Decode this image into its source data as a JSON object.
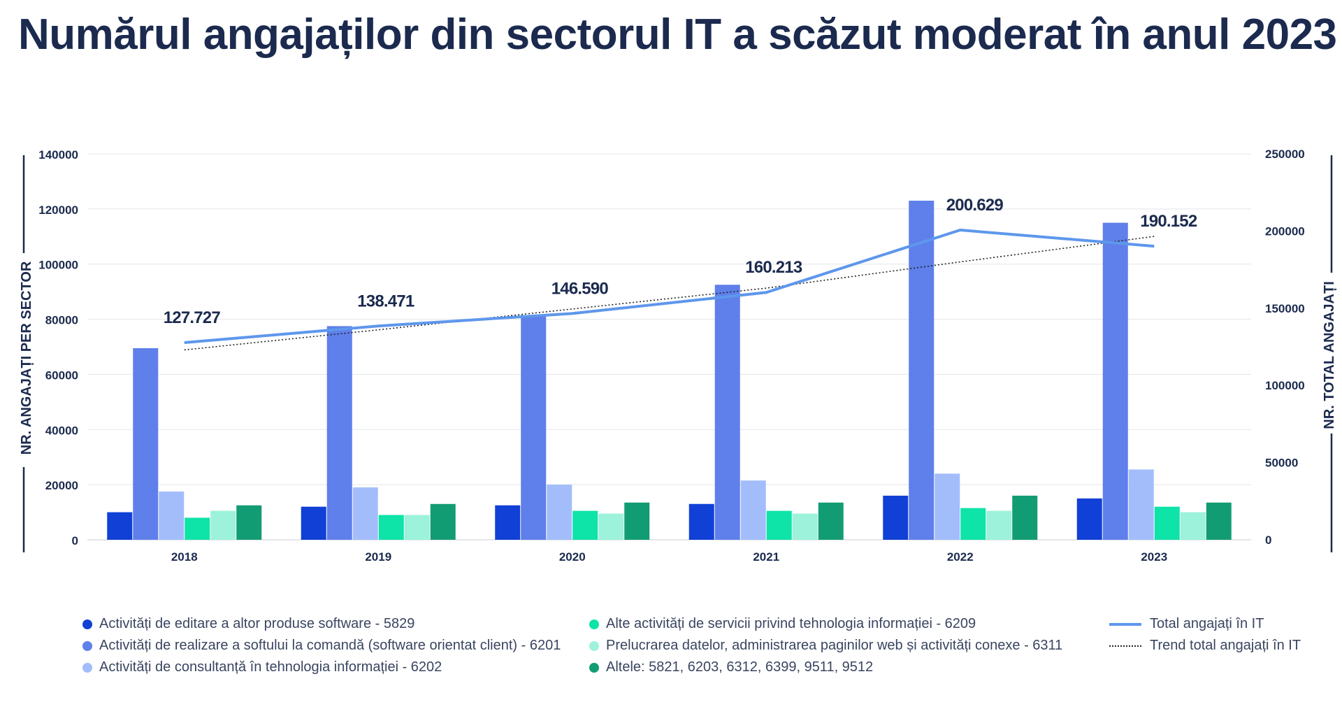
{
  "title": "Numărul angajaților din sectorul IT a scăzut moderat în anul 2023",
  "chart_data": {
    "type": "bar",
    "categories": [
      "2018",
      "2019",
      "2020",
      "2021",
      "2022",
      "2023"
    ],
    "ylabel_left": "NR. ANGAJAȚI PER SECTOR",
    "ylabel_right": "NR. TOTAL ANGAJAȚI",
    "ylim_left": [
      0,
      140000
    ],
    "yticks_left": [
      "0",
      "20000",
      "40000",
      "60000",
      "80000",
      "100000",
      "120000",
      "140000"
    ],
    "ylim_right": [
      0,
      250000
    ],
    "yticks_right": [
      "0",
      "50000",
      "100000",
      "150000",
      "200000",
      "250000"
    ],
    "grid": true,
    "legend_position": "bottom",
    "series": [
      {
        "name": "Activități de editare a altor produse software - 5829",
        "color": "#1140d6",
        "values": [
          10000,
          12000,
          12500,
          13000,
          16000,
          15000
        ]
      },
      {
        "name": "Activități de realizare a softului la comandă (software orientat client) - 6201",
        "color": "#5f7fea",
        "values": [
          69500,
          77500,
          81500,
          92500,
          123000,
          115000
        ]
      },
      {
        "name": "Activități de consultanță în tehnologia informației - 6202",
        "color": "#a3bdfb",
        "values": [
          17500,
          19000,
          20000,
          21500,
          24000,
          25500
        ]
      },
      {
        "name": "Alte activități de servicii privind tehnologia informației - 6209",
        "color": "#0ee3a8",
        "values": [
          8000,
          9000,
          10500,
          10500,
          11500,
          12000
        ]
      },
      {
        "name": "Prelucrarea datelor, administrarea paginilor web și activități conexe - 6311",
        "color": "#9cf2da",
        "values": [
          10500,
          9000,
          9500,
          9500,
          10500,
          10000
        ]
      },
      {
        "name": "Altele: 5821, 6203, 6312, 6399, 9511, 9512",
        "color": "#129c73",
        "values": [
          12500,
          13000,
          13500,
          13500,
          16000,
          13500
        ]
      }
    ],
    "line_series": {
      "name": "Total angajați în IT",
      "color": "#5e97ec",
      "axis": "right",
      "values": [
        127727,
        138471,
        146590,
        160213,
        200629,
        190152
      ],
      "labels": [
        "127.727",
        "138.471",
        "146.590",
        "160.213",
        "200.629",
        "190.152"
      ]
    },
    "trend_series": {
      "name": "Trend total angajați în IT",
      "color": "#222222",
      "axis": "right",
      "values": [
        123000,
        136000,
        149500,
        163000,
        180000,
        196500
      ]
    }
  }
}
